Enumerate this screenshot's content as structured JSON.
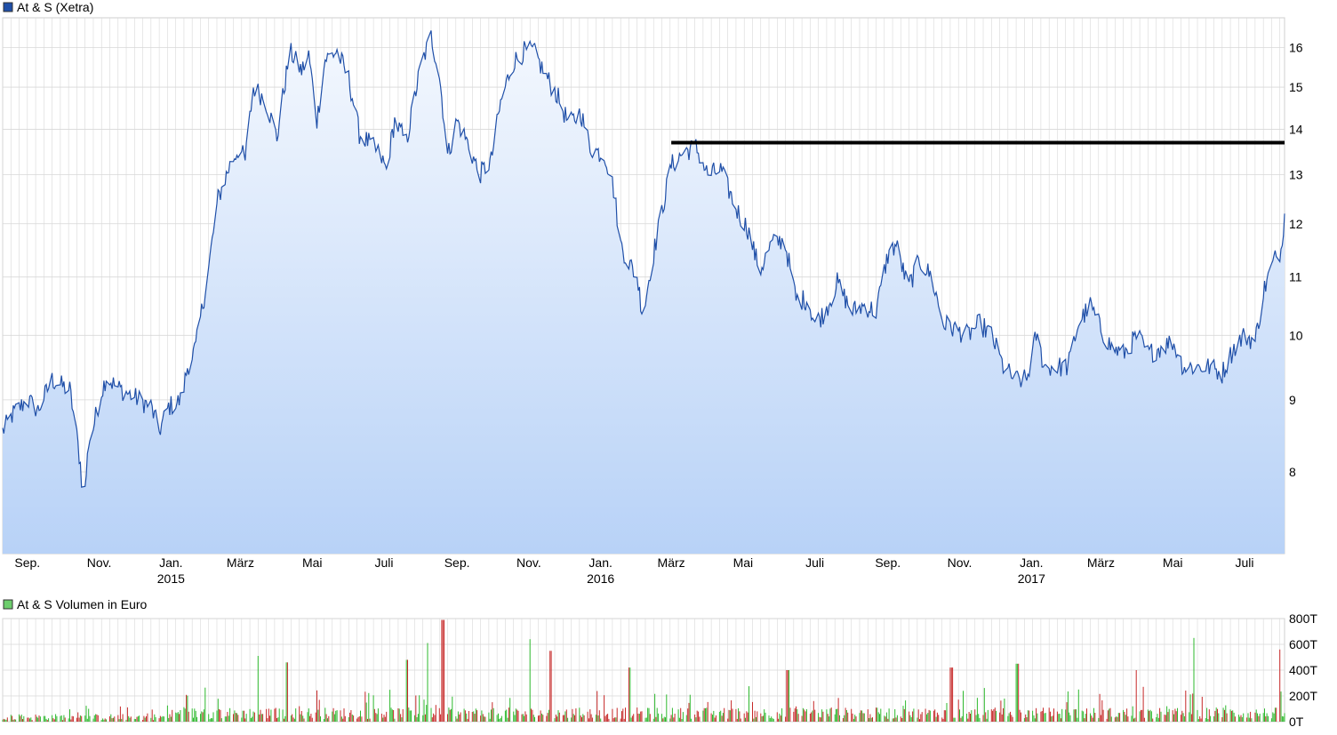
{
  "chart_data": [
    {
      "type": "area",
      "title": "At & S (Xetra)",
      "colors": {
        "line": "#1f4fa8",
        "fill_top": "#f4f8fe",
        "fill_bottom": "#b8d2f7",
        "grid": "#d8d8d8",
        "marker": "#000000",
        "legend": "#1f4fa8"
      },
      "y_scale": "log",
      "ylim": [
        7.0,
        16.8
      ],
      "y_ticks": [
        8,
        9,
        10,
        11,
        12,
        13,
        14,
        15,
        16
      ],
      "xlim": [
        "2014-08-11",
        "2017-08-04"
      ],
      "x_ticks": [
        {
          "date": "2014-09-01",
          "label": "Sep."
        },
        {
          "date": "2014-11-01",
          "label": "Nov."
        },
        {
          "date": "2015-01-01",
          "label": "Jan.",
          "year": "2015"
        },
        {
          "date": "2015-03-01",
          "label": "März"
        },
        {
          "date": "2015-05-01",
          "label": "Mai"
        },
        {
          "date": "2015-07-01",
          "label": "Juli"
        },
        {
          "date": "2015-09-01",
          "label": "Sep."
        },
        {
          "date": "2015-11-01",
          "label": "Nov."
        },
        {
          "date": "2016-01-01",
          "label": "Jan.",
          "year": "2016"
        },
        {
          "date": "2016-03-01",
          "label": "März"
        },
        {
          "date": "2016-05-01",
          "label": "Mai"
        },
        {
          "date": "2016-07-01",
          "label": "Juli"
        },
        {
          "date": "2016-09-01",
          "label": "Sep."
        },
        {
          "date": "2016-11-01",
          "label": "Nov."
        },
        {
          "date": "2017-01-01",
          "label": "Jan.",
          "year": "2017"
        },
        {
          "date": "2017-03-01",
          "label": "März"
        },
        {
          "date": "2017-05-01",
          "label": "Mai"
        },
        {
          "date": "2017-07-01",
          "label": "Juli"
        }
      ],
      "grid": true,
      "legend": "top-left",
      "series": [
        {
          "points": [
            [
              "2014-08-11",
              8.55
            ],
            [
              "2014-08-20",
              8.8
            ],
            [
              "2014-09-01",
              9.0
            ],
            [
              "2014-09-10",
              8.85
            ],
            [
              "2014-09-22",
              9.3
            ],
            [
              "2014-10-01",
              9.2
            ],
            [
              "2014-10-07",
              9.15
            ],
            [
              "2014-10-12",
              8.6
            ],
            [
              "2014-10-16",
              8.1
            ],
            [
              "2014-10-19",
              7.55
            ],
            [
              "2014-10-23",
              8.4
            ],
            [
              "2014-10-27",
              8.6
            ],
            [
              "2014-11-01",
              9.0
            ],
            [
              "2014-11-07",
              9.35
            ],
            [
              "2014-11-15",
              9.2
            ],
            [
              "2014-11-25",
              9.1
            ],
            [
              "2014-12-05",
              9.0
            ],
            [
              "2014-12-15",
              8.9
            ],
            [
              "2014-12-22",
              8.55
            ],
            [
              "2014-12-30",
              8.9
            ],
            [
              "2015-01-10",
              9.0
            ],
            [
              "2015-01-15",
              9.5
            ],
            [
              "2015-01-22",
              9.8
            ],
            [
              "2015-02-01",
              11.0
            ],
            [
              "2015-02-10",
              12.5
            ],
            [
              "2015-02-20",
              13.2
            ],
            [
              "2015-02-28",
              13.6
            ],
            [
              "2015-03-05",
              13.3
            ],
            [
              "2015-03-12",
              15.0
            ],
            [
              "2015-03-22",
              14.7
            ],
            [
              "2015-04-01",
              13.8
            ],
            [
              "2015-04-12",
              15.9
            ],
            [
              "2015-04-22",
              15.4
            ],
            [
              "2015-04-28",
              15.8
            ],
            [
              "2015-05-05",
              14.2
            ],
            [
              "2015-05-12",
              15.7
            ],
            [
              "2015-05-22",
              15.9
            ],
            [
              "2015-06-01",
              15.2
            ],
            [
              "2015-06-10",
              13.9
            ],
            [
              "2015-06-18",
              13.7
            ],
            [
              "2015-06-28",
              13.4
            ],
            [
              "2015-07-03",
              13.1
            ],
            [
              "2015-07-10",
              14.2
            ],
            [
              "2015-07-20",
              13.7
            ],
            [
              "2015-08-01",
              15.5
            ],
            [
              "2015-08-10",
              16.3
            ],
            [
              "2015-08-17",
              15.3
            ],
            [
              "2015-08-24",
              13.4
            ],
            [
              "2015-09-01",
              14.2
            ],
            [
              "2015-09-10",
              13.7
            ],
            [
              "2015-09-20",
              13.0
            ],
            [
              "2015-09-30",
              13.3
            ],
            [
              "2015-10-08",
              14.6
            ],
            [
              "2015-10-18",
              15.6
            ],
            [
              "2015-10-28",
              15.9
            ],
            [
              "2015-11-05",
              15.9
            ],
            [
              "2015-11-15",
              15.3
            ],
            [
              "2015-11-25",
              14.8
            ],
            [
              "2015-12-05",
              14.1
            ],
            [
              "2015-12-15",
              14.4
            ],
            [
              "2015-12-23",
              13.6
            ],
            [
              "2016-01-05",
              13.4
            ],
            [
              "2016-01-12",
              12.7
            ],
            [
              "2016-01-18",
              11.6
            ],
            [
              "2016-01-24",
              11.3
            ],
            [
              "2016-02-01",
              11.0
            ],
            [
              "2016-02-06",
              10.3
            ],
            [
              "2016-02-12",
              11.1
            ],
            [
              "2016-02-20",
              12.0
            ],
            [
              "2016-03-01",
              13.2
            ],
            [
              "2016-03-12",
              13.5
            ],
            [
              "2016-03-22",
              13.6
            ],
            [
              "2016-04-01",
              13.0
            ],
            [
              "2016-04-12",
              13.1
            ],
            [
              "2016-04-25",
              12.3
            ],
            [
              "2016-05-05",
              11.9
            ],
            [
              "2016-05-15",
              11.1
            ],
            [
              "2016-05-25",
              11.6
            ],
            [
              "2016-06-05",
              11.7
            ],
            [
              "2016-06-15",
              10.6
            ],
            [
              "2016-06-25",
              10.6
            ],
            [
              "2016-07-01",
              10.2
            ],
            [
              "2016-07-10",
              10.4
            ],
            [
              "2016-07-20",
              10.9
            ],
            [
              "2016-08-01",
              10.4
            ],
            [
              "2016-08-12",
              10.5
            ],
            [
              "2016-08-22",
              10.4
            ],
            [
              "2016-09-01",
              11.4
            ],
            [
              "2016-09-08",
              11.6
            ],
            [
              "2016-09-18",
              10.8
            ],
            [
              "2016-09-28",
              11.3
            ],
            [
              "2016-10-08",
              11.0
            ],
            [
              "2016-10-18",
              10.2
            ],
            [
              "2016-10-28",
              10.1
            ],
            [
              "2016-11-08",
              10.0
            ],
            [
              "2016-11-18",
              10.2
            ],
            [
              "2016-11-28",
              10.0
            ],
            [
              "2016-12-08",
              9.5
            ],
            [
              "2016-12-18",
              9.3
            ],
            [
              "2016-12-28",
              9.3
            ],
            [
              "2017-01-05",
              10.0
            ],
            [
              "2017-01-12",
              9.5
            ],
            [
              "2017-01-22",
              9.5
            ],
            [
              "2017-02-01",
              9.5
            ],
            [
              "2017-02-10",
              10.2
            ],
            [
              "2017-02-20",
              10.5
            ],
            [
              "2017-03-01",
              10.1
            ],
            [
              "2017-03-10",
              9.8
            ],
            [
              "2017-03-20",
              9.7
            ],
            [
              "2017-04-01",
              10.0
            ],
            [
              "2017-04-10",
              9.7
            ],
            [
              "2017-04-20",
              9.8
            ],
            [
              "2017-05-01",
              9.9
            ],
            [
              "2017-05-10",
              9.5
            ],
            [
              "2017-05-20",
              9.5
            ],
            [
              "2017-06-01",
              9.5
            ],
            [
              "2017-06-12",
              9.4
            ],
            [
              "2017-06-22",
              9.8
            ],
            [
              "2017-07-01",
              10.0
            ],
            [
              "2017-07-10",
              9.9
            ],
            [
              "2017-07-18",
              10.8
            ],
            [
              "2017-07-26",
              11.3
            ],
            [
              "2017-08-01",
              11.5
            ],
            [
              "2017-08-04",
              12.2
            ]
          ]
        }
      ],
      "annotations": [
        {
          "type": "hline",
          "y": 13.7,
          "x_start": "2016-03-01",
          "x_end": "2017-08-04"
        }
      ]
    },
    {
      "type": "bar",
      "title": "At & S Volumen in Euro",
      "colors": {
        "up": "#2db82d",
        "down": "#c62828",
        "legend": "#6dce6d"
      },
      "ylim": [
        0,
        800
      ],
      "y_ticks": [
        {
          "value": 0,
          "label": "0T"
        },
        {
          "value": 200,
          "label": "200T"
        },
        {
          "value": 400,
          "label": "400T"
        },
        {
          "value": 600,
          "label": "600T"
        },
        {
          "value": 800,
          "label": "800T"
        }
      ],
      "xlim": [
        "2014-08-11",
        "2017-08-04"
      ],
      "volume_spikes": [
        [
          "2015-03-15",
          510
        ],
        [
          "2015-04-10",
          460
        ],
        [
          "2015-07-20",
          480
        ],
        [
          "2015-08-08",
          610
        ],
        [
          "2015-08-20",
          790
        ],
        [
          "2015-11-01",
          640
        ],
        [
          "2015-11-20",
          550
        ],
        [
          "2016-01-25",
          420
        ],
        [
          "2016-06-08",
          400
        ],
        [
          "2016-10-25",
          420
        ],
        [
          "2016-12-20",
          450
        ],
        [
          "2017-04-01",
          400
        ],
        [
          "2017-05-20",
          650
        ],
        [
          "2017-07-30",
          560
        ]
      ]
    }
  ]
}
